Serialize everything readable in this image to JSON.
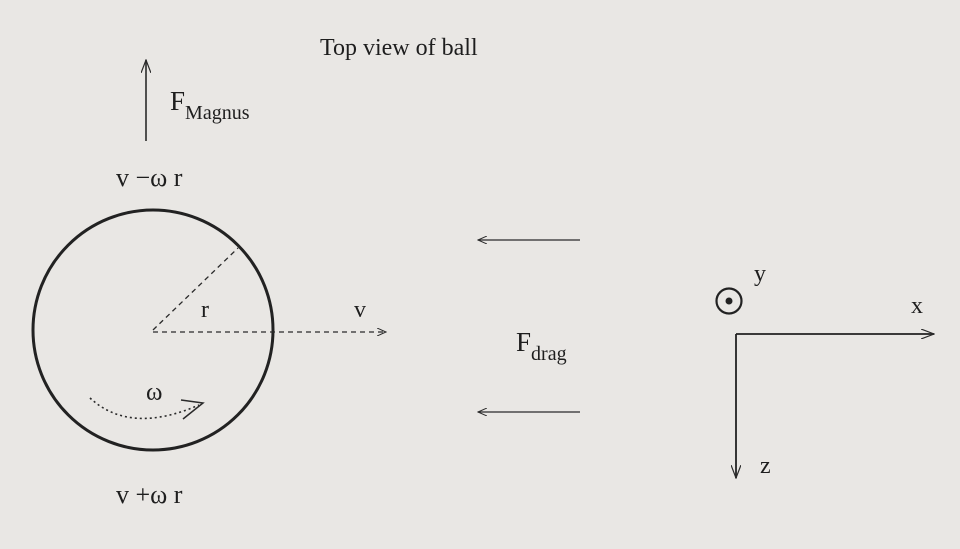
{
  "title": "Top view of ball",
  "force_magnus": {
    "symbol": "F",
    "subscript": "Magnus"
  },
  "top_speed": "v −ω r",
  "bottom_speed": "v +ω r",
  "radius_label": "r",
  "velocity_label": "v",
  "spin_label": "ω",
  "force_drag": {
    "symbol": "F",
    "subscript": "drag"
  },
  "axes": {
    "x": "x",
    "y": "y",
    "z": "z"
  }
}
